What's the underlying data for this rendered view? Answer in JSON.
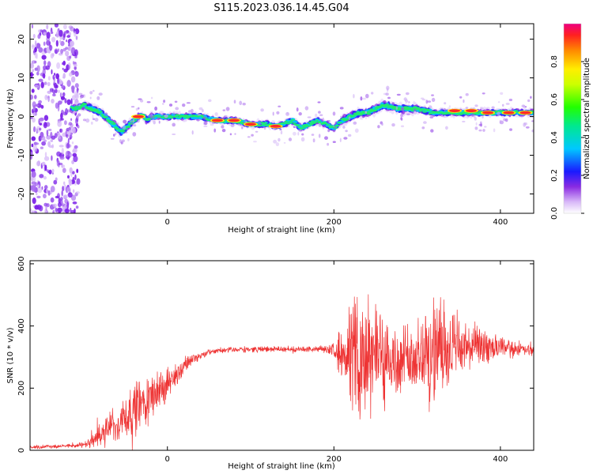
{
  "title": "S115.2023.036.14.45.G04",
  "chart_data": [
    {
      "type": "heatmap",
      "xlabel": "Height of straight line (km)",
      "ylabel": "Frequency (Hz)",
      "xlim": [
        -165,
        440
      ],
      "ylim": [
        -25,
        24
      ],
      "xticks": [
        0,
        200,
        400
      ],
      "xtick_labels": [
        "0",
        "200",
        "400"
      ],
      "yticks": [
        -20,
        -10,
        0,
        10,
        20
      ],
      "ytick_labels": [
        "-20",
        "-10",
        "0",
        "10",
        "20"
      ],
      "ridge": {
        "x": [
          -110,
          -100,
          -90,
          -80,
          -70,
          -60,
          -55,
          -50,
          -45,
          -40,
          -35,
          -30,
          -25,
          -20,
          -10,
          0,
          20,
          40,
          60,
          80,
          100,
          120,
          130,
          140,
          150,
          160,
          170,
          180,
          190,
          200,
          210,
          220,
          230,
          240,
          250,
          260,
          280,
          300,
          320,
          340,
          360,
          380,
          400,
          420,
          440
        ],
        "y": [
          2,
          3,
          2,
          1,
          -1,
          -3,
          -4,
          -3,
          -2,
          -1,
          0,
          0.5,
          -1,
          0,
          0,
          0,
          0,
          0,
          -1,
          -1,
          -2,
          -2,
          -2.5,
          -2,
          -1,
          -3,
          -2,
          -1,
          -2,
          -3,
          -1,
          0,
          1,
          1,
          2,
          3,
          2,
          2,
          1,
          1,
          1,
          1,
          1,
          1,
          1
        ],
        "peaks": [
          [
            -35,
            0
          ],
          [
            60,
            -1
          ],
          [
            80,
            -1
          ],
          [
            100,
            -2
          ],
          [
            130,
            -2.5
          ],
          [
            345,
            1.5
          ],
          [
            365,
            1.5
          ],
          [
            385,
            1
          ],
          [
            410,
            1
          ],
          [
            430,
            1
          ]
        ]
      },
      "colorbar": {
        "label": "Normalized spectral amplitude",
        "range": [
          0,
          1
        ],
        "ticks": [
          0.0,
          0.2,
          0.4,
          0.6,
          0.8
        ],
        "tick_labels": [
          "0.0",
          "0.2",
          "0.4",
          "0.6",
          "0.8"
        ]
      },
      "grid": false
    },
    {
      "type": "line",
      "xlabel": "Height of straight line (km)",
      "ylabel": "SNR (10 * v/v)",
      "xlim": [
        -165,
        440
      ],
      "ylim": [
        0,
        610
      ],
      "xticks": [
        0,
        200,
        400
      ],
      "xtick_labels": [
        "0",
        "200",
        "400"
      ],
      "yticks": [
        0,
        200,
        400,
        600
      ],
      "ytick_labels": [
        "0",
        "200",
        "400",
        "600"
      ],
      "color": "#ee3333",
      "series": [
        {
          "x": [
            -165,
            -140,
            -120,
            -100,
            -90,
            -80,
            -70,
            -60,
            -50,
            -40,
            -30,
            -20,
            -10,
            0,
            10,
            20,
            30,
            40,
            50,
            60,
            80,
            100,
            120,
            140,
            160,
            180,
            190,
            200,
            210,
            220,
            230,
            240,
            250,
            260,
            270,
            280,
            290,
            300,
            310,
            320,
            330,
            340,
            350,
            360,
            370,
            380,
            390,
            400,
            420,
            440
          ],
          "y": [
            10,
            12,
            14,
            18,
            30,
            50,
            70,
            90,
            110,
            130,
            150,
            170,
            190,
            210,
            240,
            270,
            295,
            305,
            315,
            320,
            325,
            325,
            325,
            325,
            325,
            325,
            325,
            325,
            320,
            310,
            300,
            300,
            300,
            300,
            290,
            280,
            285,
            300,
            310,
            320,
            330,
            330,
            330,
            330,
            330,
            330,
            330,
            330,
            325,
            320
          ],
          "spread": [
            5,
            5,
            5,
            8,
            20,
            35,
            50,
            60,
            70,
            75,
            80,
            70,
            55,
            45,
            35,
            25,
            15,
            10,
            8,
            8,
            8,
            8,
            8,
            8,
            8,
            8,
            10,
            20,
            80,
            150,
            170,
            170,
            170,
            150,
            120,
            100,
            110,
            130,
            150,
            150,
            130,
            110,
            90,
            70,
            60,
            50,
            40,
            30,
            20,
            15
          ]
        }
      ],
      "grid": false
    }
  ]
}
